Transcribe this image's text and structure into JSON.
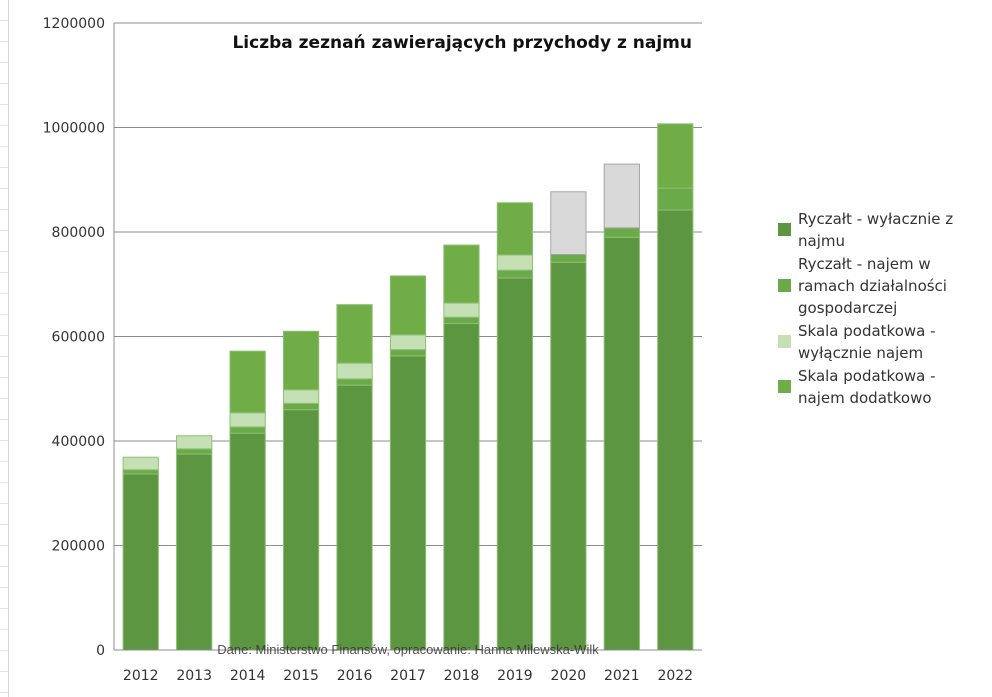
{
  "chart_data": {
    "type": "bar",
    "stacked": true,
    "title": "Liczba zeznań zawierających przychody z najmu",
    "source_note": "Dane: Ministerstwo Finansów, opracowanie: Hanna Milewska-Wilk",
    "categories": [
      "2012",
      "2013",
      "2014",
      "2015",
      "2016",
      "2017",
      "2018",
      "2019",
      "2020",
      "2021",
      "2022"
    ],
    "ylim": [
      0,
      1200000
    ],
    "yticks": [
      0,
      200000,
      400000,
      600000,
      800000,
      1000000,
      1200000
    ],
    "ytick_labels": [
      "0",
      "200000",
      "400000",
      "600000",
      "800000",
      "1000000",
      "1200000"
    ],
    "grid": true,
    "legend_position": "right",
    "series": [
      {
        "name": "Ryczałt - wyłacznie z najmu",
        "color": "#5d9640",
        "values": [
          337000,
          375000,
          415000,
          460000,
          507000,
          563000,
          625000,
          712000,
          742000,
          790000,
          842000
        ]
      },
      {
        "name": "Ryczałt - najem w ramach działalności gospodarczej",
        "color": "#6aaa48",
        "values": [
          8000,
          10000,
          12000,
          12000,
          12000,
          12000,
          12000,
          15000,
          15000,
          18000,
          42000
        ]
      },
      {
        "name": "Skala podatkowa - wyłącznie najem",
        "color": "#c5e0b4",
        "values": [
          24000,
          25000,
          27000,
          26000,
          30000,
          28000,
          27000,
          29000,
          120000,
          122000,
          0
        ]
      },
      {
        "name": "Skala podatkowa - najem dodatkowo",
        "color": "#70ad47",
        "values": [
          0,
          0,
          118000,
          112000,
          112000,
          113000,
          111000,
          100000,
          0,
          0,
          123000
        ]
      }
    ],
    "grey_overrides": [
      {
        "category": "2020",
        "series": 2,
        "color": "#d9d9d9"
      },
      {
        "category": "2021",
        "series": 2,
        "color": "#d9d9d9"
      }
    ]
  }
}
